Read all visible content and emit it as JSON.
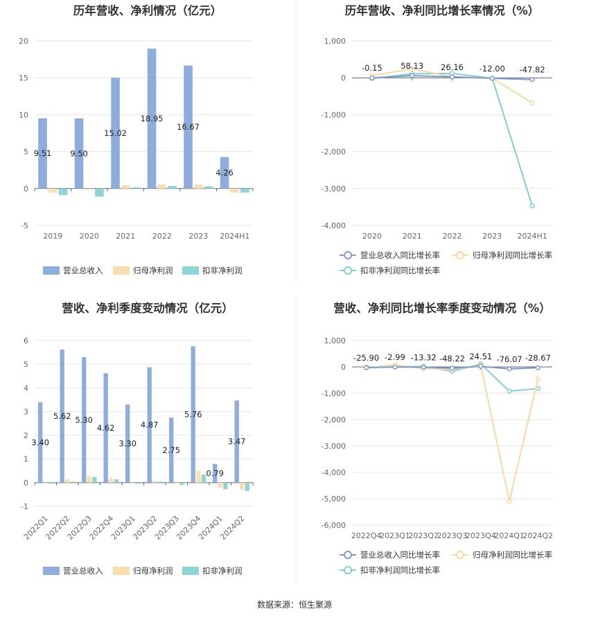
{
  "footer": {
    "source": "数据来源：恒生聚源"
  },
  "colors": {
    "revenue": "#8eacdc",
    "net_profit": "#f8dfb0",
    "deducted_profit": "#8fd5d6",
    "grid": "#e6e6e6",
    "axis": "#666666"
  },
  "chart_data": [
    {
      "type": "bar",
      "title": "历年营收、净利情况（亿元）",
      "categories": [
        "2019",
        "2020",
        "2021",
        "2022",
        "2023",
        "2024H1"
      ],
      "yticks": [
        "-5",
        "0",
        "5",
        "10",
        "15",
        "20"
      ],
      "ylim": [
        -5,
        20
      ],
      "grid": true,
      "legend_position": "bottom",
      "series": [
        {
          "name": "营业总收入",
          "values": [
            9.51,
            9.5,
            15.02,
            18.95,
            16.67,
            4.26
          ],
          "labels": [
            "9.51",
            "9.50",
            "15.02",
            "18.95",
            "16.67",
            "4.26"
          ]
        },
        {
          "name": "归母净利润",
          "values": [
            -0.55,
            -0.15,
            0.45,
            0.55,
            0.55,
            -0.55
          ]
        },
        {
          "name": "扣非净利润",
          "values": [
            -0.9,
            -1.1,
            0.15,
            0.35,
            0.3,
            -0.55
          ]
        }
      ]
    },
    {
      "type": "line",
      "title": "历年营收、净利同比增长率情况（%）",
      "categories": [
        "2020",
        "2021",
        "2022",
        "2023",
        "2024H1"
      ],
      "yticks": [
        "-4,000",
        "-3,000",
        "-2,000",
        "-1,000",
        "0",
        "1,000"
      ],
      "ylim": [
        -4000,
        1000
      ],
      "grid": true,
      "legend_position": "bottom",
      "series": [
        {
          "name": "营业总收入同比增长率",
          "values": [
            -0.15,
            58.13,
            26.16,
            -12.0,
            -47.82
          ],
          "labels": [
            "-0.15",
            "58.13",
            "26.16",
            "-12.00",
            "-47.82"
          ]
        },
        {
          "name": "归母净利润同比增长率",
          "values": [
            60,
            240,
            30,
            -10,
            -680
          ]
        },
        {
          "name": "扣非净利润同比增长率",
          "values": [
            -20,
            110,
            120,
            -10,
            -3470
          ]
        }
      ]
    },
    {
      "type": "bar",
      "title": "营收、净利季度变动情况（亿元）",
      "categories": [
        "2022Q1",
        "2022Q2",
        "2022Q3",
        "2022Q4",
        "2023Q1",
        "2023Q2",
        "2023Q3",
        "2023Q4",
        "2024Q1",
        "2024Q2"
      ],
      "yticks": [
        "-1",
        "0",
        "1",
        "2",
        "3",
        "4",
        "5",
        "6"
      ],
      "ylim": [
        -1,
        6
      ],
      "grid": true,
      "legend_position": "bottom",
      "series": [
        {
          "name": "营业总收入",
          "values": [
            3.4,
            5.62,
            5.3,
            4.62,
            3.3,
            4.87,
            2.75,
            5.76,
            0.79,
            3.47
          ],
          "labels": [
            "3.40",
            "5.62",
            "5.30",
            "4.62",
            "3.30",
            "4.87",
            "2.75",
            "5.76",
            "0.79",
            "3.47"
          ]
        },
        {
          "name": "归母净利润",
          "values": [
            -0.02,
            0.14,
            0.28,
            0.19,
            -0.02,
            0.08,
            -0.02,
            0.5,
            -0.22,
            -0.3
          ]
        },
        {
          "name": "扣非净利润",
          "values": [
            -0.03,
            0.03,
            0.24,
            0.14,
            -0.03,
            0.04,
            -0.1,
            0.34,
            -0.28,
            -0.35
          ]
        }
      ]
    },
    {
      "type": "line",
      "title": "营收、净利同比增长率季度变动情况（%）",
      "categories": [
        "2022Q4",
        "2023Q1",
        "2023Q2",
        "2023Q3",
        "2023Q4",
        "2024Q1",
        "2024Q2"
      ],
      "yticks": [
        "-6,000",
        "-5,000",
        "-4,000",
        "-3,000",
        "-2,000",
        "-1,000",
        "0",
        "1,000"
      ],
      "ylim": [
        -6000,
        1000
      ],
      "grid": true,
      "legend_position": "bottom",
      "series": [
        {
          "name": "营业总收入同比增长率",
          "values": [
            -25.9,
            -2.99,
            -13.32,
            -48.22,
            24.51,
            -76.07,
            -28.67
          ],
          "labels": [
            "-25.90",
            "-2.99",
            "-13.32",
            "-48.22",
            "24.51",
            "-76.07",
            "-28.67"
          ]
        },
        {
          "name": "归母净利润同比增长率",
          "values": [
            -40,
            80,
            -60,
            -100,
            60,
            -5100,
            -450
          ]
        },
        {
          "name": "扣非净利润同比增长率",
          "values": [
            -10,
            0,
            20,
            -170,
            110,
            -920,
            -820
          ]
        }
      ]
    }
  ]
}
